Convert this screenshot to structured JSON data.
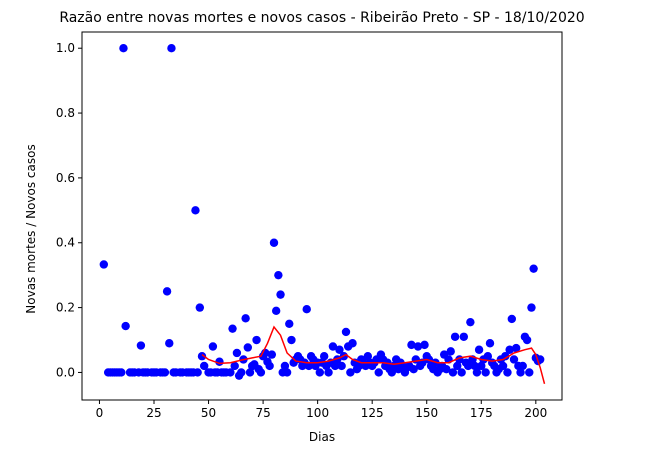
{
  "chart_data": {
    "type": "scatter",
    "title": "Razão entre novas mortes e novos casos - Ribeirão Preto - SP - 18/10/2020",
    "xlabel": "Dias",
    "ylabel": "Novas mortes / Novos casos",
    "xlim": [
      -8,
      212
    ],
    "ylim": [
      -0.085,
      1.05
    ],
    "xticks": [
      0,
      25,
      50,
      75,
      100,
      125,
      150,
      175,
      200
    ],
    "yticks": [
      0.0,
      0.2,
      0.4,
      0.6,
      0.8,
      1.0
    ],
    "grid": false,
    "colors": {
      "points": "#0000ff",
      "line": "#ff0000"
    },
    "points": [
      [
        2,
        0.333
      ],
      [
        4,
        0.0
      ],
      [
        5,
        0.0
      ],
      [
        6,
        0.0
      ],
      [
        7,
        0.0
      ],
      [
        8,
        0.0
      ],
      [
        9,
        0.0
      ],
      [
        10,
        0.0
      ],
      [
        11,
        1.0
      ],
      [
        12,
        0.143
      ],
      [
        14,
        0.0
      ],
      [
        15,
        0.0
      ],
      [
        16,
        0.0
      ],
      [
        18,
        0.0
      ],
      [
        19,
        0.083
      ],
      [
        20,
        0.0
      ],
      [
        21,
        0.0
      ],
      [
        22,
        0.0
      ],
      [
        24,
        0.0
      ],
      [
        25,
        0.0
      ],
      [
        26,
        0.0
      ],
      [
        28,
        0.0
      ],
      [
        29,
        0.0
      ],
      [
        30,
        0.0
      ],
      [
        31,
        0.25
      ],
      [
        32,
        0.09
      ],
      [
        33,
        1.0
      ],
      [
        34,
        0.0
      ],
      [
        35,
        0.0
      ],
      [
        37,
        0.0
      ],
      [
        38,
        0.0
      ],
      [
        40,
        0.0
      ],
      [
        41,
        0.0
      ],
      [
        42,
        0.0
      ],
      [
        43,
        0.0
      ],
      [
        44,
        0.5
      ],
      [
        45,
        0.0
      ],
      [
        46,
        0.2
      ],
      [
        47,
        0.05
      ],
      [
        48,
        0.02
      ],
      [
        50,
        0.0
      ],
      [
        51,
        0.0
      ],
      [
        52,
        0.08
      ],
      [
        53,
        0.0
      ],
      [
        54,
        0.0
      ],
      [
        55,
        0.033
      ],
      [
        56,
        0.0
      ],
      [
        57,
        0.0
      ],
      [
        58,
        0.0
      ],
      [
        60,
        0.0
      ],
      [
        61,
        0.135
      ],
      [
        62,
        0.02
      ],
      [
        63,
        0.06
      ],
      [
        64,
        -0.01
      ],
      [
        65,
        0.0
      ],
      [
        66,
        0.04
      ],
      [
        67,
        0.167
      ],
      [
        68,
        0.077
      ],
      [
        69,
        0.0
      ],
      [
        70,
        0.02
      ],
      [
        71,
        0.025
      ],
      [
        72,
        0.1
      ],
      [
        73,
        0.01
      ],
      [
        74,
        0.0
      ],
      [
        75,
        0.05
      ],
      [
        76,
        0.06
      ],
      [
        77,
        0.033
      ],
      [
        78,
        0.02
      ],
      [
        79,
        0.055
      ],
      [
        80,
        0.4
      ],
      [
        81,
        0.19
      ],
      [
        82,
        0.3
      ],
      [
        83,
        0.24
      ],
      [
        84,
        0.0
      ],
      [
        85,
        0.02
      ],
      [
        86,
        0.0
      ],
      [
        87,
        0.15
      ],
      [
        88,
        0.1
      ],
      [
        89,
        0.03
      ],
      [
        90,
        0.04
      ],
      [
        91,
        0.05
      ],
      [
        92,
        0.04
      ],
      [
        93,
        0.02
      ],
      [
        94,
        0.03
      ],
      [
        95,
        0.195
      ],
      [
        96,
        0.02
      ],
      [
        97,
        0.05
      ],
      [
        98,
        0.04
      ],
      [
        99,
        0.02
      ],
      [
        100,
        0.03
      ],
      [
        101,
        0.0
      ],
      [
        102,
        0.03
      ],
      [
        103,
        0.05
      ],
      [
        104,
        0.02
      ],
      [
        105,
        0.0
      ],
      [
        106,
        0.03
      ],
      [
        107,
        0.08
      ],
      [
        108,
        0.02
      ],
      [
        109,
        0.04
      ],
      [
        110,
        0.07
      ],
      [
        111,
        0.02
      ],
      [
        112,
        0.05
      ],
      [
        113,
        0.125
      ],
      [
        114,
        0.08
      ],
      [
        115,
        0.0
      ],
      [
        116,
        0.09
      ],
      [
        117,
        0.03
      ],
      [
        118,
        0.01
      ],
      [
        119,
        0.02
      ],
      [
        120,
        0.04
      ],
      [
        121,
        0.03
      ],
      [
        122,
        0.02
      ],
      [
        123,
        0.05
      ],
      [
        124,
        0.03
      ],
      [
        125,
        0.02
      ],
      [
        126,
        0.03
      ],
      [
        127,
        0.04
      ],
      [
        128,
        0.0
      ],
      [
        129,
        0.055
      ],
      [
        130,
        0.04
      ],
      [
        131,
        0.02
      ],
      [
        132,
        0.03
      ],
      [
        133,
        0.01
      ],
      [
        134,
        0.0
      ],
      [
        135,
        0.02
      ],
      [
        136,
        0.04
      ],
      [
        137,
        0.01
      ],
      [
        138,
        0.03
      ],
      [
        139,
        0.02
      ],
      [
        140,
        0.0
      ],
      [
        141,
        0.015
      ],
      [
        142,
        0.02
      ],
      [
        143,
        0.085
      ],
      [
        144,
        0.01
      ],
      [
        145,
        0.04
      ],
      [
        146,
        0.08
      ],
      [
        147,
        0.02
      ],
      [
        148,
        0.03
      ],
      [
        149,
        0.085
      ],
      [
        150,
        0.05
      ],
      [
        151,
        0.04
      ],
      [
        152,
        0.02
      ],
      [
        153,
        0.01
      ],
      [
        154,
        0.03
      ],
      [
        155,
        0.0
      ],
      [
        156,
        0.01
      ],
      [
        157,
        0.02
      ],
      [
        158,
        0.055
      ],
      [
        159,
        0.01
      ],
      [
        160,
        0.04
      ],
      [
        161,
        0.065
      ],
      [
        162,
        0.0
      ],
      [
        163,
        0.11
      ],
      [
        164,
        0.02
      ],
      [
        165,
        0.04
      ],
      [
        166,
        0.0
      ],
      [
        167,
        0.11
      ],
      [
        168,
        0.03
      ],
      [
        169,
        0.02
      ],
      [
        170,
        0.155
      ],
      [
        171,
        0.04
      ],
      [
        172,
        0.02
      ],
      [
        173,
        0.0
      ],
      [
        174,
        0.07
      ],
      [
        175,
        0.02
      ],
      [
        176,
        0.04
      ],
      [
        177,
        0.0
      ],
      [
        178,
        0.05
      ],
      [
        179,
        0.09
      ],
      [
        180,
        0.03
      ],
      [
        181,
        0.02
      ],
      [
        182,
        0.0
      ],
      [
        183,
        0.01
      ],
      [
        184,
        0.04
      ],
      [
        185,
        0.02
      ],
      [
        186,
        0.05
      ],
      [
        187,
        0.0
      ],
      [
        188,
        0.07
      ],
      [
        189,
        0.165
      ],
      [
        190,
        0.04
      ],
      [
        191,
        0.075
      ],
      [
        192,
        0.02
      ],
      [
        193,
        0.0
      ],
      [
        194,
        0.02
      ],
      [
        195,
        0.11
      ],
      [
        196,
        0.1
      ],
      [
        197,
        0.0
      ],
      [
        198,
        0.2
      ],
      [
        199,
        0.32
      ],
      [
        200,
        0.045
      ],
      [
        201,
        0.035
      ],
      [
        202,
        0.04
      ]
    ],
    "trend_line": [
      [
        47,
        0.055
      ],
      [
        50,
        0.04
      ],
      [
        55,
        0.028
      ],
      [
        60,
        0.03
      ],
      [
        65,
        0.038
      ],
      [
        70,
        0.045
      ],
      [
        74,
        0.05
      ],
      [
        77,
        0.09
      ],
      [
        80,
        0.14
      ],
      [
        83,
        0.115
      ],
      [
        86,
        0.06
      ],
      [
        90,
        0.035
      ],
      [
        95,
        0.03
      ],
      [
        100,
        0.03
      ],
      [
        105,
        0.035
      ],
      [
        110,
        0.045
      ],
      [
        113,
        0.055
      ],
      [
        116,
        0.04
      ],
      [
        120,
        0.03
      ],
      [
        125,
        0.03
      ],
      [
        130,
        0.03
      ],
      [
        135,
        0.025
      ],
      [
        140,
        0.03
      ],
      [
        145,
        0.035
      ],
      [
        150,
        0.04
      ],
      [
        155,
        0.03
      ],
      [
        160,
        0.03
      ],
      [
        165,
        0.045
      ],
      [
        170,
        0.05
      ],
      [
        175,
        0.04
      ],
      [
        180,
        0.035
      ],
      [
        185,
        0.04
      ],
      [
        190,
        0.06
      ],
      [
        195,
        0.07
      ],
      [
        198,
        0.075
      ],
      [
        200,
        0.055
      ],
      [
        202,
        0.015
      ],
      [
        204,
        -0.035
      ]
    ]
  }
}
